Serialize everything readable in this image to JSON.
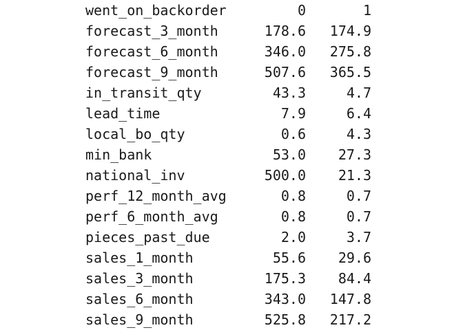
{
  "header": {
    "label": "went_on_backorder",
    "col0": "0",
    "col1": "1"
  },
  "rows": [
    {
      "name": "forecast_3_month",
      "v0": "178.6",
      "v1": "174.9"
    },
    {
      "name": "forecast_6_month",
      "v0": "346.0",
      "v1": "275.8"
    },
    {
      "name": "forecast_9_month",
      "v0": "507.6",
      "v1": "365.5"
    },
    {
      "name": "in_transit_qty",
      "v0": "43.3",
      "v1": "4.7"
    },
    {
      "name": "lead_time",
      "v0": "7.9",
      "v1": "6.4"
    },
    {
      "name": "local_bo_qty",
      "v0": "0.6",
      "v1": "4.3"
    },
    {
      "name": "min_bank",
      "v0": "53.0",
      "v1": "27.3"
    },
    {
      "name": "national_inv",
      "v0": "500.0",
      "v1": "21.3"
    },
    {
      "name": "perf_12_month_avg",
      "v0": "0.8",
      "v1": "0.7"
    },
    {
      "name": "perf_6_month_avg",
      "v0": "0.8",
      "v1": "0.7"
    },
    {
      "name": "pieces_past_due",
      "v0": "2.0",
      "v1": "3.7"
    },
    {
      "name": "sales_1_month",
      "v0": "55.6",
      "v1": "29.6"
    },
    {
      "name": "sales_3_month",
      "v0": "175.3",
      "v1": "84.4"
    },
    {
      "name": "sales_6_month",
      "v0": "343.0",
      "v1": "147.8"
    },
    {
      "name": "sales_9_month",
      "v0": "525.8",
      "v1": "217.2"
    }
  ]
}
